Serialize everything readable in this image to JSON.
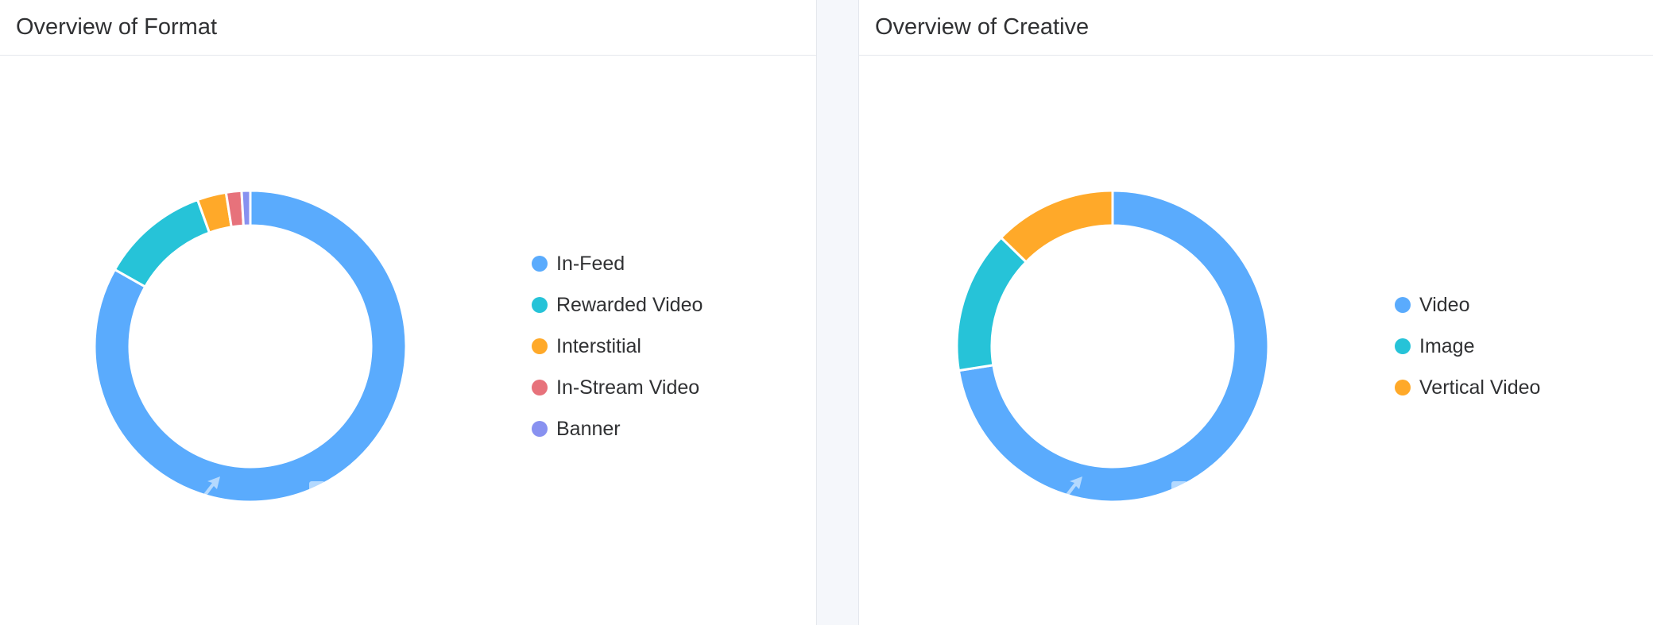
{
  "panels": {
    "format": {
      "title": "Overview of Format"
    },
    "creative": {
      "title": "Overview of Creative"
    }
  },
  "chart_data": [
    {
      "type": "pie",
      "title": "Overview of Format",
      "donut": true,
      "legend_position": "right",
      "categories": [
        "In-Feed",
        "Rewarded Video",
        "Interstitial",
        "In-Stream Video",
        "Banner"
      ],
      "values": [
        83.2,
        11.3,
        3.0,
        1.6,
        0.9
      ],
      "colors": [
        "#5aabfd",
        "#26c3d8",
        "#ffa929",
        "#e7727b",
        "#8891f0"
      ]
    },
    {
      "type": "pie",
      "title": "Overview of Creative",
      "donut": true,
      "legend_position": "right",
      "categories": [
        "Video",
        "Image",
        "Vertical Video"
      ],
      "values": [
        72.5,
        14.8,
        12.7
      ],
      "colors": [
        "#5aabfd",
        "#26c3d8",
        "#ffa929"
      ]
    }
  ]
}
